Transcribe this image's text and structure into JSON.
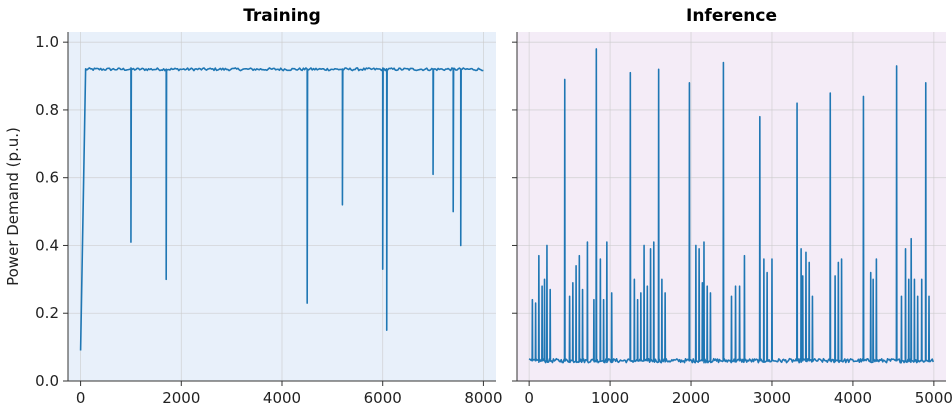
{
  "chart_data": [
    {
      "type": "line",
      "title": "Training",
      "xlabel": "",
      "ylabel": "Power Demand (p.u.)",
      "xlim": [
        -250,
        8250
      ],
      "ylim": [
        0.0,
        1.03
      ],
      "xticks": [
        0,
        2000,
        4000,
        6000,
        8000
      ],
      "yticks": [
        0.0,
        0.2,
        0.4,
        0.6,
        0.8,
        1.0
      ],
      "ytick_labels": [
        "0.0",
        "0.2",
        "0.4",
        "0.6",
        "0.8",
        "1.0"
      ],
      "grid": true,
      "background": "#e8f0fa",
      "color": "#1f77b4",
      "series": [
        {
          "baseline": 0.92,
          "ramp": [
            [
              0,
              0.09
            ],
            [
              100,
              0.92
            ],
            [
              8000,
              0.92
            ]
          ],
          "dips": [
            {
              "x": 1000,
              "y": 0.41
            },
            {
              "x": 1700,
              "y": 0.3
            },
            {
              "x": 4500,
              "y": 0.23
            },
            {
              "x": 5200,
              "y": 0.52
            },
            {
              "x": 6000,
              "y": 0.33
            },
            {
              "x": 6080,
              "y": 0.15
            },
            {
              "x": 7000,
              "y": 0.61
            },
            {
              "x": 7400,
              "y": 0.5
            },
            {
              "x": 7550,
              "y": 0.4
            }
          ]
        }
      ]
    },
    {
      "type": "line",
      "title": "Inference",
      "xlabel": "",
      "ylabel": "",
      "xlim": [
        -150,
        5150
      ],
      "ylim": [
        0.0,
        1.03
      ],
      "xticks": [
        0,
        1000,
        2000,
        3000,
        4000,
        5000
      ],
      "yticks": [
        0.0,
        0.2,
        0.4,
        0.6,
        0.8,
        1.0
      ],
      "grid": true,
      "background": "#f4ecf7",
      "color": "#1f77b4",
      "series": [
        {
          "baseline": 0.06,
          "range": [
            0,
            5000
          ],
          "spikes": [
            {
              "x": 40,
              "y": 0.24
            },
            {
              "x": 80,
              "y": 0.23
            },
            {
              "x": 120,
              "y": 0.37
            },
            {
              "x": 160,
              "y": 0.28
            },
            {
              "x": 190,
              "y": 0.3
            },
            {
              "x": 220,
              "y": 0.4
            },
            {
              "x": 260,
              "y": 0.27
            },
            {
              "x": 440,
              "y": 0.89
            },
            {
              "x": 500,
              "y": 0.25
            },
            {
              "x": 540,
              "y": 0.29
            },
            {
              "x": 580,
              "y": 0.34
            },
            {
              "x": 620,
              "y": 0.37
            },
            {
              "x": 660,
              "y": 0.27
            },
            {
              "x": 720,
              "y": 0.41
            },
            {
              "x": 800,
              "y": 0.24
            },
            {
              "x": 830,
              "y": 0.98
            },
            {
              "x": 880,
              "y": 0.36
            },
            {
              "x": 920,
              "y": 0.24
            },
            {
              "x": 960,
              "y": 0.41
            },
            {
              "x": 1020,
              "y": 0.26
            },
            {
              "x": 1250,
              "y": 0.91
            },
            {
              "x": 1300,
              "y": 0.3
            },
            {
              "x": 1340,
              "y": 0.24
            },
            {
              "x": 1380,
              "y": 0.26
            },
            {
              "x": 1420,
              "y": 0.4
            },
            {
              "x": 1460,
              "y": 0.28
            },
            {
              "x": 1500,
              "y": 0.39
            },
            {
              "x": 1540,
              "y": 0.41
            },
            {
              "x": 1600,
              "y": 0.92
            },
            {
              "x": 1640,
              "y": 0.3
            },
            {
              "x": 1680,
              "y": 0.26
            },
            {
              "x": 1980,
              "y": 0.88
            },
            {
              "x": 2060,
              "y": 0.4
            },
            {
              "x": 2100,
              "y": 0.39
            },
            {
              "x": 2140,
              "y": 0.29
            },
            {
              "x": 2160,
              "y": 0.41
            },
            {
              "x": 2200,
              "y": 0.28
            },
            {
              "x": 2240,
              "y": 0.26
            },
            {
              "x": 2400,
              "y": 0.94
            },
            {
              "x": 2500,
              "y": 0.25
            },
            {
              "x": 2550,
              "y": 0.28
            },
            {
              "x": 2600,
              "y": 0.28
            },
            {
              "x": 2660,
              "y": 0.37
            },
            {
              "x": 2850,
              "y": 0.78
            },
            {
              "x": 2900,
              "y": 0.36
            },
            {
              "x": 2940,
              "y": 0.32
            },
            {
              "x": 3000,
              "y": 0.36
            },
            {
              "x": 3310,
              "y": 0.82
            },
            {
              "x": 3360,
              "y": 0.39
            },
            {
              "x": 3380,
              "y": 0.31
            },
            {
              "x": 3420,
              "y": 0.38
            },
            {
              "x": 3460,
              "y": 0.35
            },
            {
              "x": 3500,
              "y": 0.25
            },
            {
              "x": 3720,
              "y": 0.85
            },
            {
              "x": 3780,
              "y": 0.31
            },
            {
              "x": 3820,
              "y": 0.35
            },
            {
              "x": 3860,
              "y": 0.36
            },
            {
              "x": 4130,
              "y": 0.84
            },
            {
              "x": 4220,
              "y": 0.32
            },
            {
              "x": 4250,
              "y": 0.3
            },
            {
              "x": 4290,
              "y": 0.36
            },
            {
              "x": 4540,
              "y": 0.93
            },
            {
              "x": 4600,
              "y": 0.25
            },
            {
              "x": 4650,
              "y": 0.39
            },
            {
              "x": 4690,
              "y": 0.3
            },
            {
              "x": 4720,
              "y": 0.42
            },
            {
              "x": 4760,
              "y": 0.3
            },
            {
              "x": 4800,
              "y": 0.25
            },
            {
              "x": 4850,
              "y": 0.3
            },
            {
              "x": 4900,
              "y": 0.88
            },
            {
              "x": 4940,
              "y": 0.25
            }
          ]
        }
      ]
    }
  ]
}
